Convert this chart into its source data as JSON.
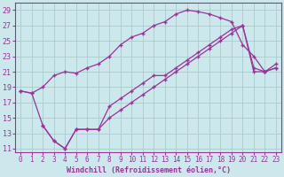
{
  "background_color": "#cce8ec",
  "grid_color": "#aacccc",
  "line_color": "#993399",
  "xlabel": "Windchill (Refroidissement éolien,°C)",
  "xlim": [
    -0.5,
    23.5
  ],
  "ylim": [
    10.5,
    30.0
  ],
  "xticks": [
    0,
    1,
    2,
    3,
    4,
    5,
    6,
    7,
    8,
    9,
    10,
    11,
    12,
    13,
    14,
    15,
    16,
    17,
    18,
    19,
    20,
    21,
    22,
    23
  ],
  "yticks": [
    11,
    13,
    15,
    17,
    19,
    21,
    23,
    25,
    27,
    29
  ],
  "line1_x": [
    0,
    1,
    2,
    3,
    4,
    5,
    6,
    7,
    8,
    9,
    10,
    11,
    12,
    13,
    14,
    15,
    16,
    17,
    18,
    19,
    20,
    21,
    22,
    23
  ],
  "line1_y": [
    18.5,
    18.2,
    19.0,
    20.5,
    21.0,
    20.8,
    21.5,
    22.0,
    23.0,
    24.5,
    25.5,
    26.0,
    27.0,
    27.5,
    28.5,
    29.0,
    28.8,
    28.5,
    28.0,
    27.5,
    24.5,
    23.0,
    21.0,
    21.5
  ],
  "line2_x": [
    0,
    1,
    2,
    3,
    4,
    5,
    6,
    7,
    8,
    9,
    10,
    11,
    12,
    13,
    14,
    15,
    16,
    17,
    18,
    19,
    20,
    21,
    22,
    23
  ],
  "line2_y": [
    18.5,
    18.2,
    14.0,
    12.0,
    11.0,
    13.5,
    13.5,
    13.5,
    16.5,
    17.5,
    18.5,
    19.5,
    20.5,
    20.5,
    21.5,
    22.5,
    23.5,
    24.5,
    25.5,
    26.5,
    27.0,
    21.5,
    21.0,
    21.5
  ],
  "line3_x": [
    2,
    3,
    4,
    5,
    6,
    7,
    8,
    9,
    10,
    11,
    12,
    13,
    14,
    15,
    16,
    17,
    18,
    19,
    20,
    21,
    22,
    23
  ],
  "line3_y": [
    14.0,
    12.0,
    11.0,
    13.5,
    13.5,
    13.5,
    15.0,
    16.0,
    17.0,
    18.0,
    19.0,
    20.0,
    21.0,
    22.0,
    23.0,
    24.0,
    25.0,
    26.0,
    27.0,
    21.0,
    21.0,
    22.0
  ]
}
